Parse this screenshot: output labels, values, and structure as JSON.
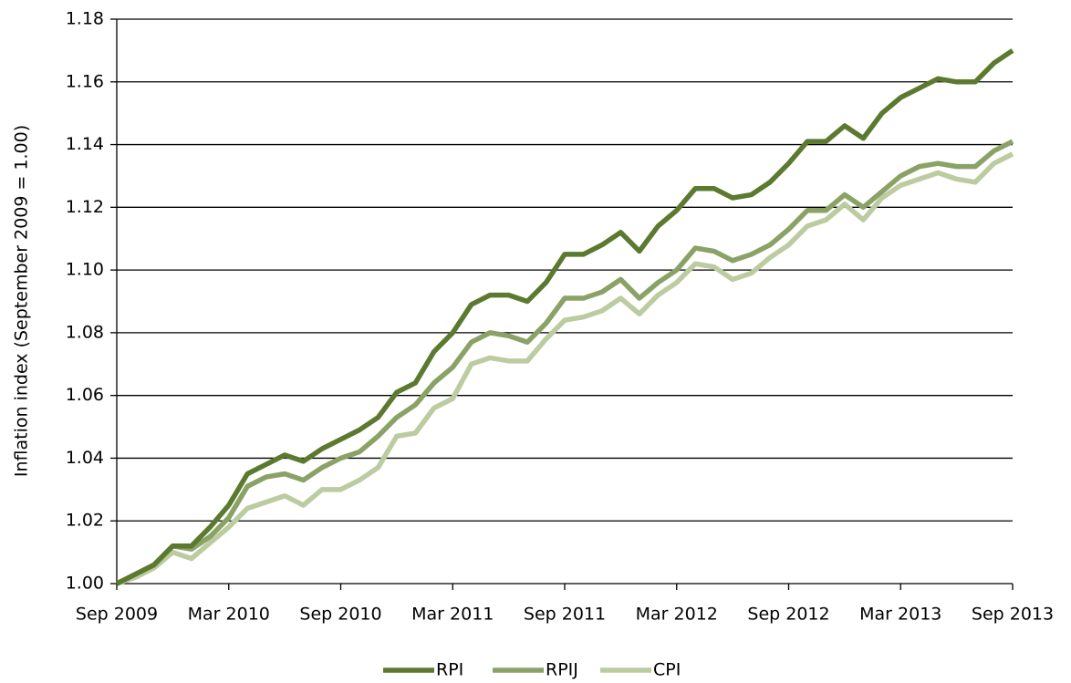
{
  "chart_data": {
    "type": "line",
    "y_label": "Inflation index (September 2009 = 1.00)",
    "categories": [
      "Sep 2009",
      null,
      null,
      null,
      null,
      null,
      "Mar 2010",
      null,
      null,
      null,
      null,
      null,
      "Sep 2010",
      null,
      null,
      null,
      null,
      null,
      "Mar 2011",
      null,
      null,
      null,
      null,
      null,
      "Sep 2011",
      null,
      null,
      null,
      null,
      null,
      "Mar 2012",
      null,
      null,
      null,
      null,
      null,
      "Sep 2012",
      null,
      null,
      null,
      null,
      null,
      "Mar 2013",
      null,
      null,
      null,
      null,
      null,
      "Sep 2013"
    ],
    "series": [
      {
        "name": "RPI",
        "color": "#5b7a2f",
        "values": [
          1.0,
          1.003,
          1.006,
          1.012,
          1.012,
          1.018,
          1.025,
          1.035,
          1.038,
          1.041,
          1.039,
          1.043,
          1.046,
          1.049,
          1.053,
          1.061,
          1.064,
          1.074,
          1.08,
          1.089,
          1.092,
          1.092,
          1.09,
          1.096,
          1.105,
          1.105,
          1.108,
          1.112,
          1.106,
          1.114,
          1.119,
          1.126,
          1.126,
          1.123,
          1.124,
          1.128,
          1.134,
          1.141,
          1.141,
          1.146,
          1.142,
          1.15,
          1.155,
          1.158,
          1.161,
          1.16,
          1.16,
          1.166,
          1.17
        ]
      },
      {
        "name": "RPIJ",
        "color": "#8aa266",
        "values": [
          1.0,
          1.003,
          1.006,
          1.012,
          1.011,
          1.015,
          1.021,
          1.031,
          1.034,
          1.035,
          1.033,
          1.037,
          1.04,
          1.042,
          1.047,
          1.053,
          1.057,
          1.064,
          1.069,
          1.077,
          1.08,
          1.079,
          1.077,
          1.083,
          1.091,
          1.091,
          1.093,
          1.097,
          1.091,
          1.096,
          1.1,
          1.107,
          1.106,
          1.103,
          1.105,
          1.108,
          1.113,
          1.119,
          1.119,
          1.124,
          1.12,
          1.125,
          1.13,
          1.133,
          1.134,
          1.133,
          1.133,
          1.138,
          1.141
        ]
      },
      {
        "name": "CPI",
        "color": "#bccba0",
        "values": [
          1.0,
          1.002,
          1.005,
          1.01,
          1.008,
          1.013,
          1.018,
          1.024,
          1.026,
          1.028,
          1.025,
          1.03,
          1.03,
          1.033,
          1.037,
          1.047,
          1.048,
          1.056,
          1.059,
          1.07,
          1.072,
          1.071,
          1.071,
          1.078,
          1.084,
          1.085,
          1.087,
          1.091,
          1.086,
          1.092,
          1.096,
          1.102,
          1.101,
          1.097,
          1.099,
          1.104,
          1.108,
          1.114,
          1.116,
          1.121,
          1.116,
          1.123,
          1.127,
          1.129,
          1.131,
          1.129,
          1.128,
          1.134,
          1.137
        ]
      }
    ],
    "ylim": [
      1.0,
      1.18
    ],
    "yticks": [
      {
        "value": 1.0,
        "label": "1.00"
      },
      1.02,
      1.04,
      1.06,
      1.08,
      {
        "value": 1.1,
        "label": "1.10"
      },
      1.12,
      1.14,
      1.16,
      1.18
    ],
    "grid": true,
    "legend": "bottom"
  }
}
